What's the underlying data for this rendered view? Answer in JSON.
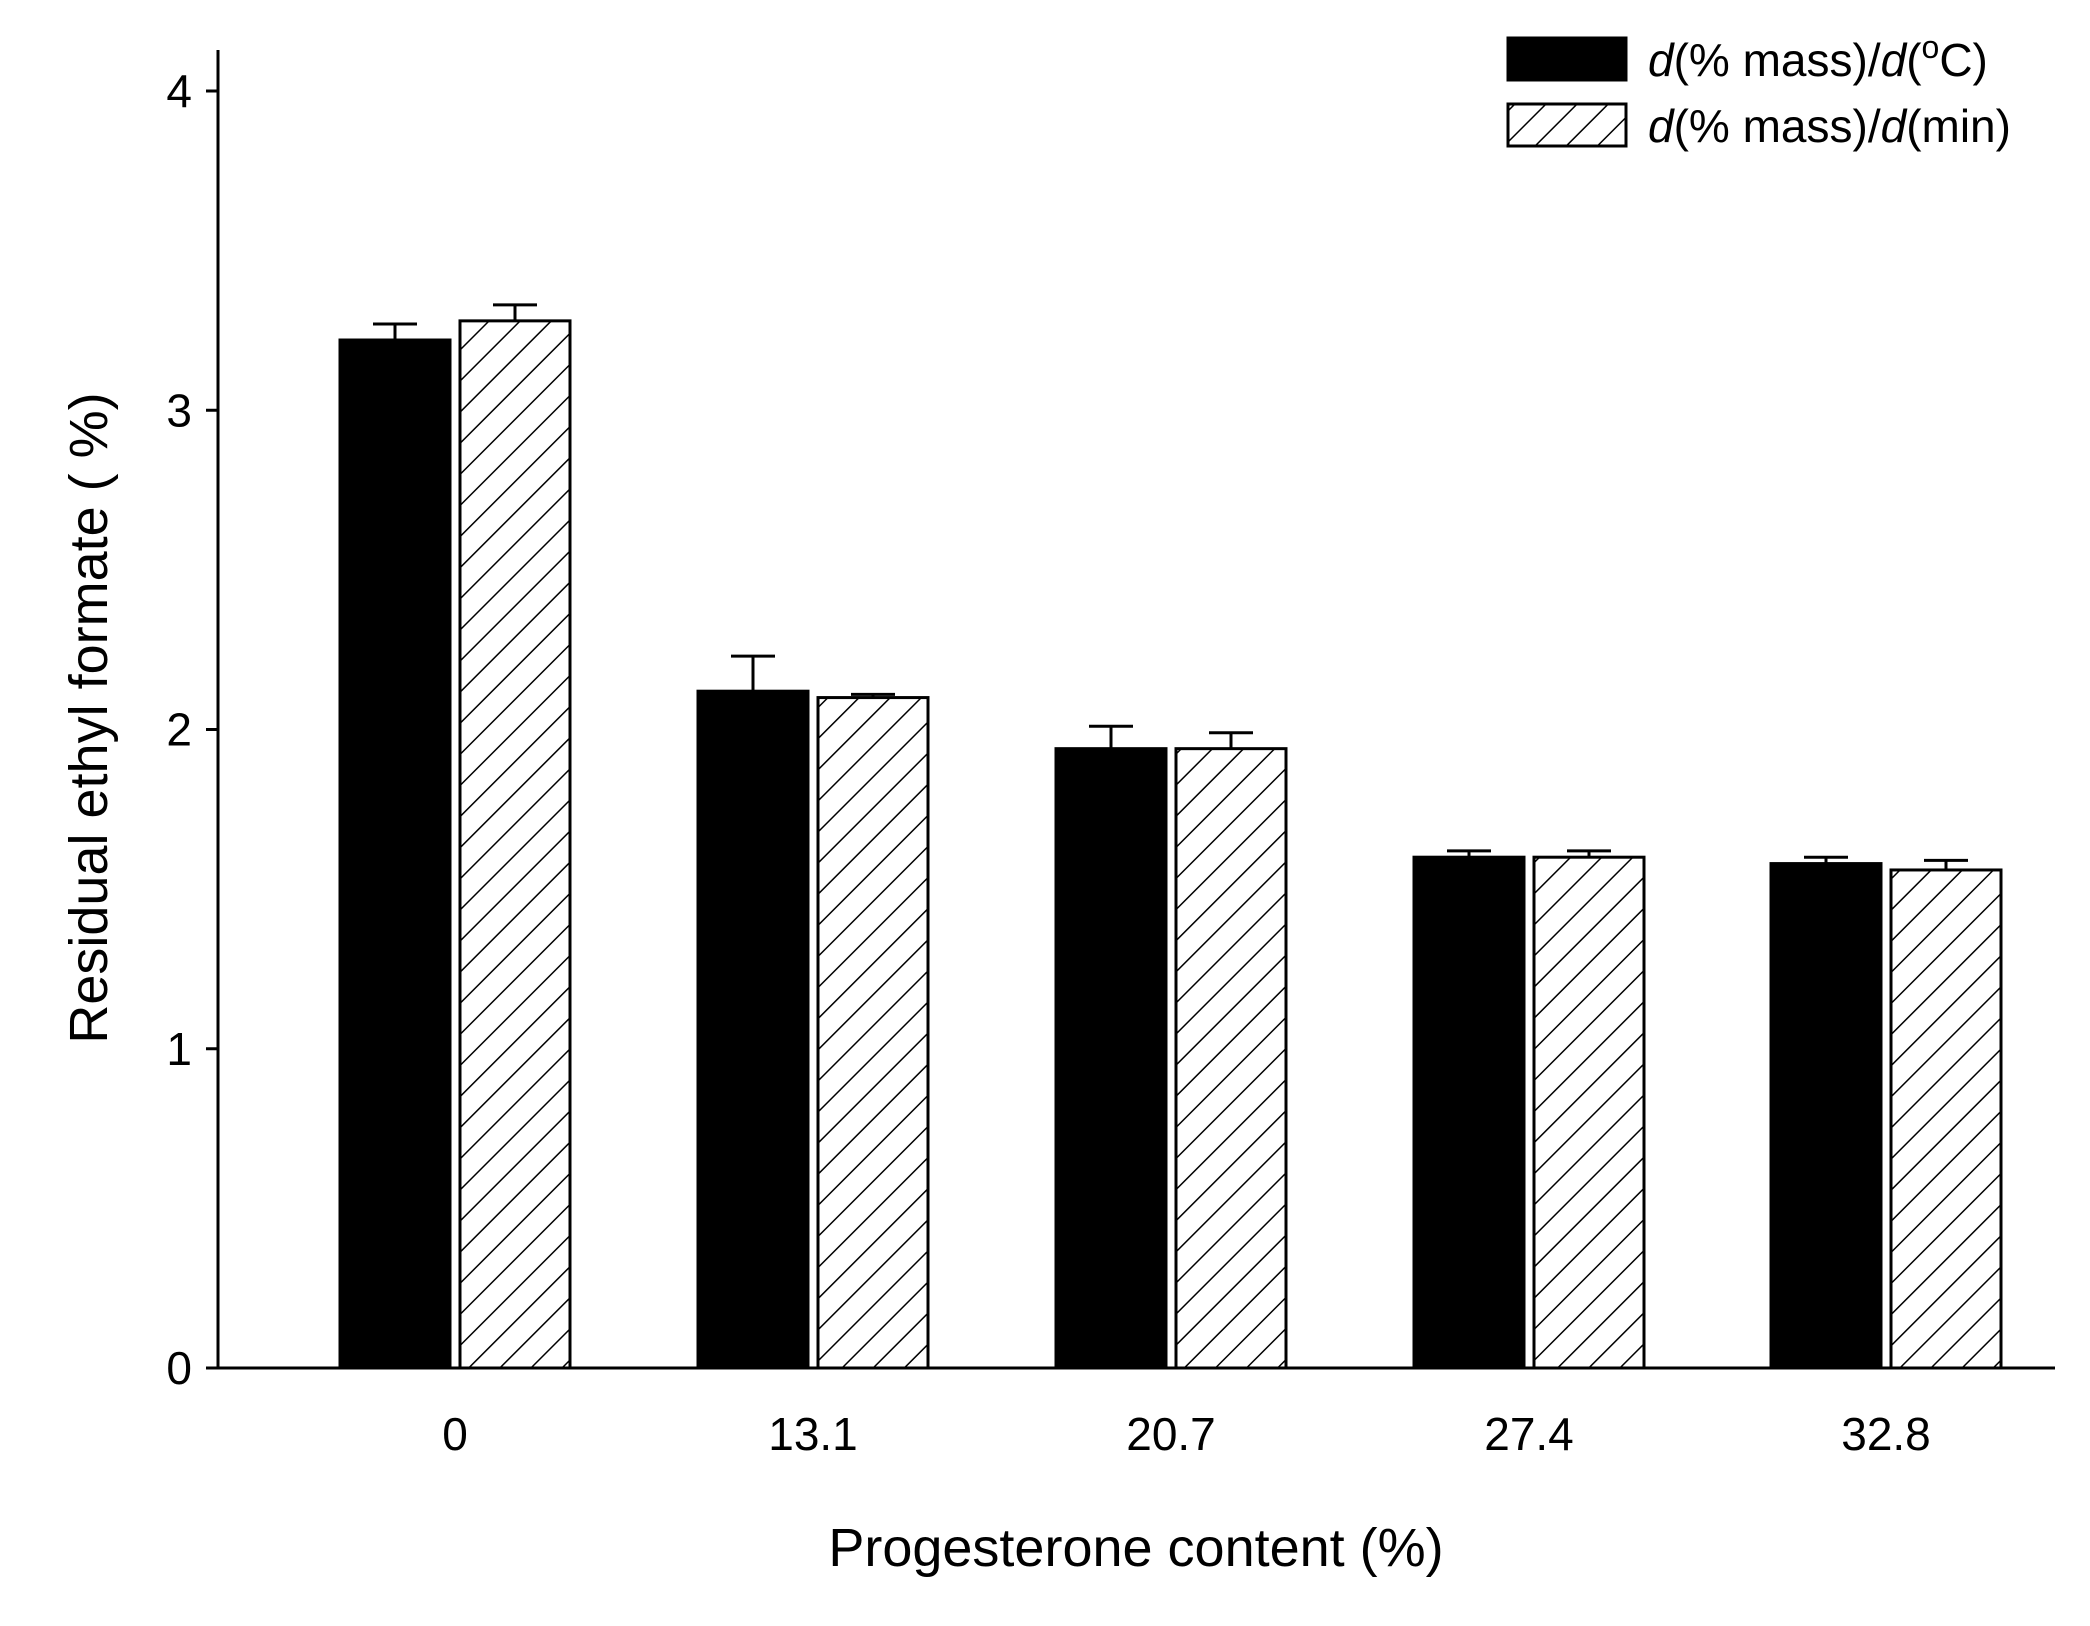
{
  "chart_data": {
    "type": "bar",
    "title": "",
    "xlabel": "Progesterone content (%)",
    "ylabel": "Residual ethyl formate ( %)",
    "categories": [
      "0",
      "13.1",
      "20.7",
      "27.4",
      "32.8"
    ],
    "ylim": [
      0,
      4
    ],
    "yticks": [
      0,
      1,
      2,
      3,
      4
    ],
    "grid": false,
    "legend_position": "top-right",
    "series": [
      {
        "name": "d(% mass)/d(oC)",
        "legend_parts": {
          "italic1": "d",
          "mid": "(% mass)/",
          "italic2": "d",
          "pre_sup": "(",
          "sup": "o",
          "post": "C)"
        },
        "fill": "solid",
        "color": "#000000",
        "values": [
          3.22,
          2.12,
          1.94,
          1.6,
          1.58
        ],
        "errors": [
          0.05,
          0.11,
          0.07,
          0.02,
          0.02
        ]
      },
      {
        "name": "d(% mass)/d(min)",
        "legend_parts": {
          "italic1": "d",
          "mid": "(% mass)/",
          "italic2": "d",
          "pre_sup": "(min)",
          "sup": "",
          "post": ""
        },
        "fill": "hatch",
        "color": "#000000",
        "values": [
          3.28,
          2.1,
          1.94,
          1.6,
          1.56
        ],
        "errors": [
          0.05,
          0.01,
          0.05,
          0.02,
          0.03
        ]
      }
    ]
  }
}
